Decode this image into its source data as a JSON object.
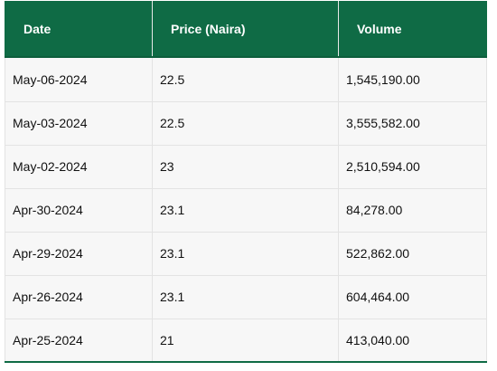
{
  "table": {
    "headers": [
      "Date",
      "Price (Naira)",
      "Volume"
    ],
    "rows": [
      [
        "May-06-2024",
        "22.5",
        "1,545,190.00"
      ],
      [
        "May-03-2024",
        "22.5",
        "3,555,582.00"
      ],
      [
        "May-02-2024",
        "23",
        "2,510,594.00"
      ],
      [
        "Apr-30-2024",
        "23.1",
        "84,278.00"
      ],
      [
        "Apr-29-2024",
        "23.1",
        "522,862.00"
      ],
      [
        "Apr-26-2024",
        "23.1",
        "604,464.00"
      ],
      [
        "Apr-25-2024",
        "21",
        "413,040.00"
      ]
    ]
  },
  "colors": {
    "header_bg": "#0f6b45",
    "header_text": "#ffffff",
    "row_bg": "#f7f7f7"
  }
}
